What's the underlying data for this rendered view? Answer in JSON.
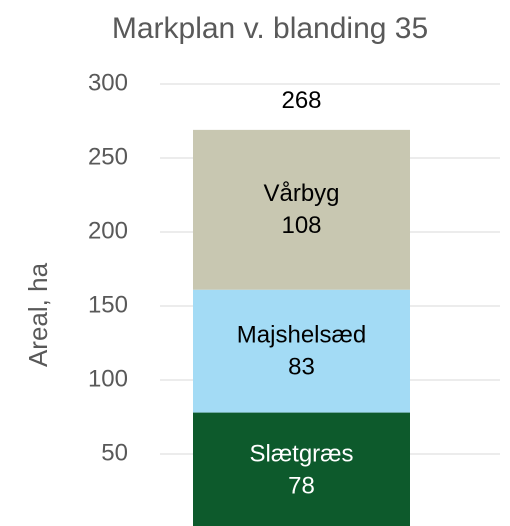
{
  "chart_data": {
    "type": "stacked_bar",
    "title": "Markplan v. blanding 35",
    "y_label": "Areal, ha",
    "categories": [
      null
    ],
    "series": [
      {
        "name": "Slætgræs",
        "color": "#0d5a2c",
        "text_color": "#ffffff",
        "values": [
          78
        ]
      },
      {
        "name": "Majshelsæd",
        "color": "#a3dbf5",
        "text_color": "#000000",
        "values": [
          83
        ]
      },
      {
        "name": "Vårbyg",
        "color": "#c8c7b1",
        "text_color": "#000000",
        "values": [
          108
        ]
      }
    ],
    "total": 268,
    "ylim": [
      0,
      300
    ],
    "yticks": [
      50,
      100,
      150,
      200,
      250,
      300
    ],
    "grid": true
  }
}
